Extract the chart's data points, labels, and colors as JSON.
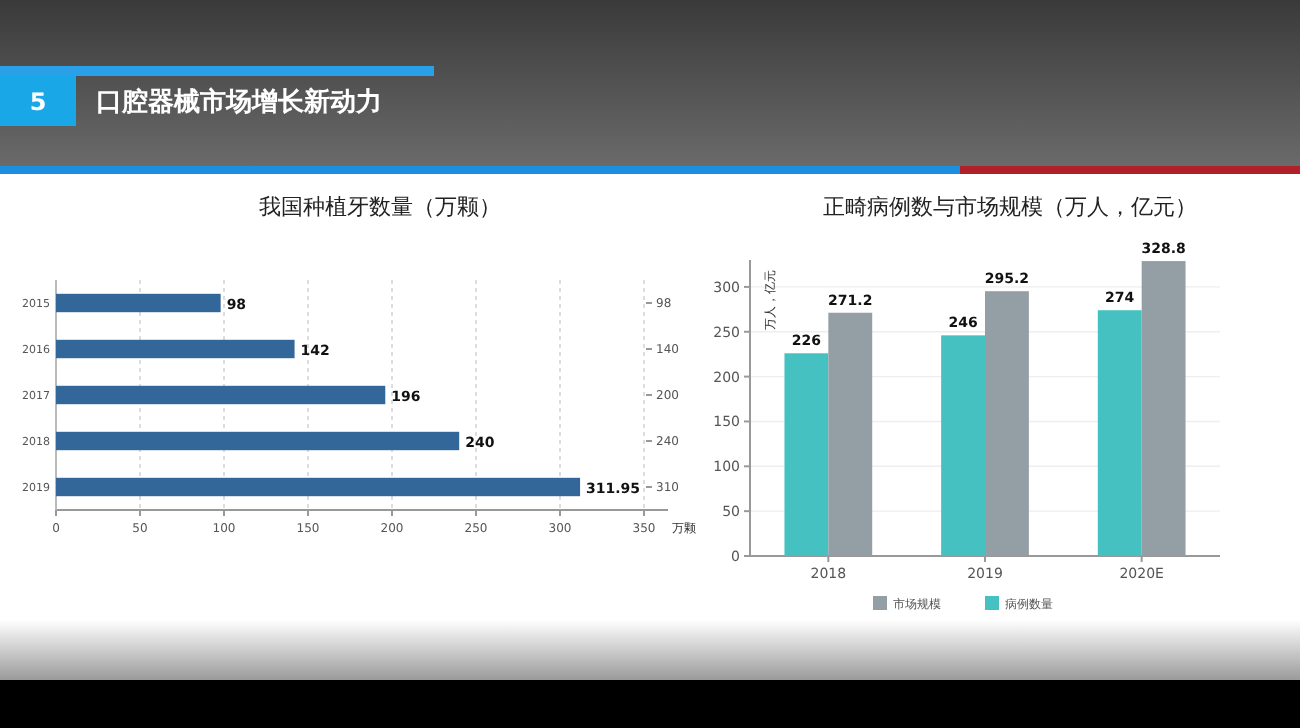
{
  "chart_data": [
    {
      "type": "bar",
      "orientation": "horizontal",
      "title": "我国种植牙数量（万颗）",
      "xlabel": "万颗",
      "categories": [
        "2015",
        "2016",
        "2017",
        "2018",
        "2019"
      ],
      "series": [
        {
          "color": "#336699",
          "values": [
            98,
            142,
            196,
            240,
            311.95
          ]
        }
      ],
      "xlim": [
        0,
        350
      ],
      "xticks": [
        0,
        50,
        100,
        150,
        200,
        250,
        300,
        350
      ],
      "grid": "x",
      "data_labels": true,
      "annotations": [
        "5",
        "口腔器械市场增长新动力",
        "98",
        "140",
        "200",
        "240",
        "310"
      ]
    },
    {
      "type": "bar",
      "title": "正畸病例数与市场规模（万人，亿元）",
      "ylabel": "万人，亿元",
      "categories": [
        "2018",
        "2019",
        "2020E"
      ],
      "series": [
        {
          "name": "病例数量",
          "color": "#45c1c1",
          "values": [
            226,
            246,
            274
          ]
        },
        {
          "name": "市场规模",
          "color": "#939ea5",
          "values": [
            271.2,
            295.2,
            328.8
          ]
        }
      ],
      "ylim": [
        0,
        330
      ],
      "yticks": [
        0,
        50,
        100,
        150,
        200,
        250,
        300
      ],
      "grid": "y",
      "data_labels": true,
      "legend": "bottom"
    }
  ]
}
